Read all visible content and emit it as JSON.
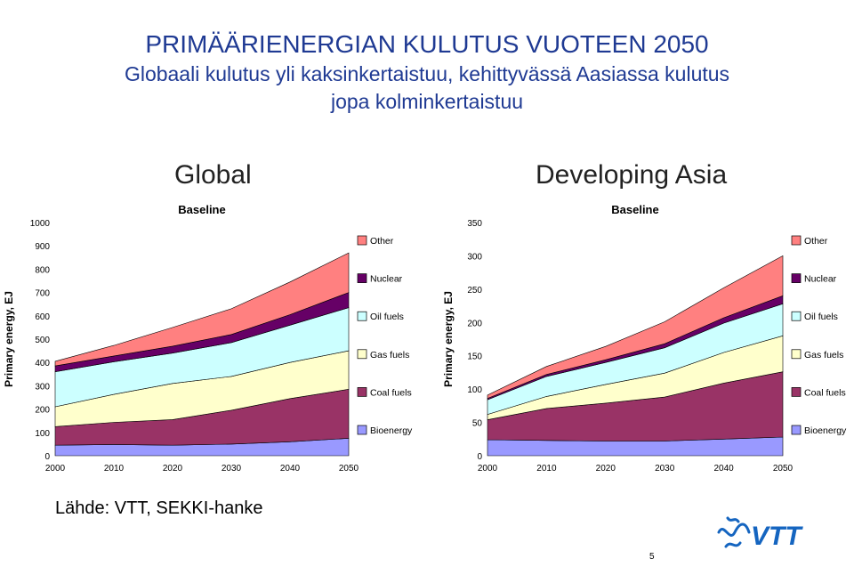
{
  "title": {
    "line1": "PRIMÄÄRIENERGIAN KULUTUS VUOTEEN 2050",
    "line2": "Globaali kulutus yli kaksinkertaistuu, kehittyvässä Aasiassa kulutus",
    "line3": "jopa kolminkertaistuu"
  },
  "source": "Lähde: VTT, SEKKI-hanke",
  "page_number": "5",
  "logo": {
    "name": "VTT logo",
    "text": "VTT",
    "color": "#1565c0"
  },
  "chart_data": [
    {
      "type": "area",
      "heading": "Global",
      "title": "Baseline",
      "ylabel": "Primary energy, EJ",
      "ylim": [
        0,
        1000
      ],
      "yticks": [
        0,
        100,
        200,
        300,
        400,
        500,
        600,
        700,
        800,
        900,
        1000
      ],
      "x": [
        2000,
        2010,
        2020,
        2030,
        2040,
        2050
      ],
      "stacked": true,
      "legend_position": "right",
      "series": [
        {
          "name": "Bioenergy",
          "color": "#9999ff",
          "values": [
            45,
            48,
            45,
            50,
            60,
            75
          ]
        },
        {
          "name": "Coal fuels",
          "color": "#993366",
          "values": [
            80,
            95,
            110,
            145,
            185,
            210
          ]
        },
        {
          "name": "Gas fuels",
          "color": "#ffffcc",
          "values": [
            85,
            120,
            155,
            145,
            155,
            165
          ]
        },
        {
          "name": "Oil fuels",
          "color": "#ccffff",
          "values": [
            150,
            140,
            130,
            145,
            160,
            185
          ]
        },
        {
          "name": "Nuclear",
          "color": "#660066",
          "values": [
            25,
            25,
            30,
            35,
            45,
            65
          ]
        },
        {
          "name": "Other",
          "color": "#ff8080",
          "values": [
            20,
            45,
            80,
            110,
            140,
            170
          ]
        }
      ]
    },
    {
      "type": "area",
      "heading": "Developing Asia",
      "title": "Baseline",
      "ylabel": "Primary energy, EJ",
      "ylim": [
        0,
        350
      ],
      "yticks": [
        0,
        50,
        100,
        150,
        200,
        250,
        300,
        350
      ],
      "x": [
        2000,
        2010,
        2020,
        2030,
        2040,
        2050
      ],
      "stacked": true,
      "legend_position": "right",
      "series": [
        {
          "name": "Bioenergy",
          "color": "#9999ff",
          "values": [
            24,
            23,
            22,
            22,
            25,
            28
          ]
        },
        {
          "name": "Coal fuels",
          "color": "#993366",
          "values": [
            30,
            48,
            57,
            66,
            84,
            98
          ]
        },
        {
          "name": "Gas fuels",
          "color": "#ffffcc",
          "values": [
            8,
            18,
            28,
            36,
            46,
            54
          ]
        },
        {
          "name": "Oil fuels",
          "color": "#ccffff",
          "values": [
            22,
            30,
            33,
            38,
            44,
            48
          ]
        },
        {
          "name": "Nuclear",
          "color": "#660066",
          "values": [
            2,
            3,
            4,
            6,
            8,
            12
          ]
        },
        {
          "name": "Other",
          "color": "#ff8080",
          "values": [
            5,
            12,
            20,
            33,
            45,
            60
          ]
        }
      ]
    }
  ]
}
